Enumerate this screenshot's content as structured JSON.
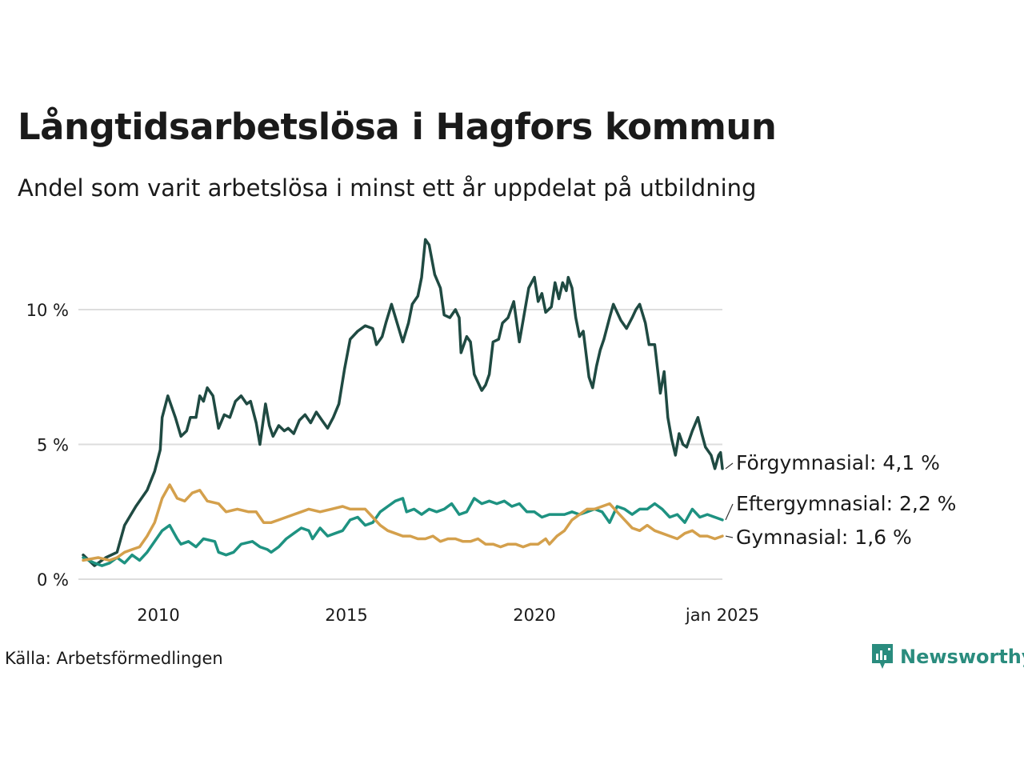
{
  "header": {
    "title": "Långtidsarbetslösa i Hagfors kommun",
    "subtitle": "Andel som varit arbetslösa i minst ett år uppdelat på utbildning"
  },
  "footer": {
    "source": "Källa: Arbetsförmedlingen",
    "brand": "Newsworthy"
  },
  "chart_data": {
    "type": "line",
    "title": "Långtidsarbetslösa i Hagfors kommun",
    "subtitle": "Andel som varit arbetslösa i minst ett år uppdelat på utbildning",
    "xlabel": "",
    "ylabel": "",
    "xlim": [
      2008.0,
      2025.0
    ],
    "ylim": [
      0,
      12.8
    ],
    "y_ticks": [
      {
        "value": 0,
        "label": "0 %"
      },
      {
        "value": 5,
        "label": "5 %"
      },
      {
        "value": 10,
        "label": "10 %"
      }
    ],
    "x_ticks": [
      {
        "value": 2010,
        "label": "2010"
      },
      {
        "value": 2015,
        "label": "2015"
      },
      {
        "value": 2020,
        "label": "2020"
      },
      {
        "value": 2025,
        "label": "jan 2025"
      }
    ],
    "grid": "horizontal",
    "series": [
      {
        "name": "Förgymnasial",
        "end_label": "Förgymnasial: 4,1 %",
        "color": "#1f4a42",
        "points": [
          [
            2008.0,
            0.9
          ],
          [
            2008.3,
            0.5
          ],
          [
            2008.6,
            0.8
          ],
          [
            2008.9,
            1.0
          ],
          [
            2009.1,
            2.0
          ],
          [
            2009.4,
            2.7
          ],
          [
            2009.7,
            3.3
          ],
          [
            2009.9,
            4.0
          ],
          [
            2010.05,
            4.8
          ],
          [
            2010.1,
            6.0
          ],
          [
            2010.25,
            6.8
          ],
          [
            2010.45,
            6.0
          ],
          [
            2010.6,
            5.3
          ],
          [
            2010.75,
            5.5
          ],
          [
            2010.85,
            6.0
          ],
          [
            2011.0,
            6.0
          ],
          [
            2011.1,
            6.8
          ],
          [
            2011.2,
            6.6
          ],
          [
            2011.3,
            7.1
          ],
          [
            2011.45,
            6.8
          ],
          [
            2011.6,
            5.6
          ],
          [
            2011.75,
            6.1
          ],
          [
            2011.9,
            6.0
          ],
          [
            2012.05,
            6.6
          ],
          [
            2012.2,
            6.8
          ],
          [
            2012.35,
            6.5
          ],
          [
            2012.45,
            6.6
          ],
          [
            2012.6,
            5.8
          ],
          [
            2012.7,
            5.0
          ],
          [
            2012.85,
            6.5
          ],
          [
            2012.95,
            5.7
          ],
          [
            2013.05,
            5.3
          ],
          [
            2013.2,
            5.7
          ],
          [
            2013.35,
            5.5
          ],
          [
            2013.45,
            5.6
          ],
          [
            2013.6,
            5.4
          ],
          [
            2013.75,
            5.9
          ],
          [
            2013.9,
            6.1
          ],
          [
            2014.05,
            5.8
          ],
          [
            2014.2,
            6.2
          ],
          [
            2014.35,
            5.9
          ],
          [
            2014.5,
            5.6
          ],
          [
            2014.65,
            6.0
          ],
          [
            2014.8,
            6.5
          ],
          [
            2014.95,
            7.8
          ],
          [
            2015.1,
            8.9
          ],
          [
            2015.3,
            9.2
          ],
          [
            2015.5,
            9.4
          ],
          [
            2015.7,
            9.3
          ],
          [
            2015.8,
            8.7
          ],
          [
            2015.95,
            9.0
          ],
          [
            2016.05,
            9.5
          ],
          [
            2016.2,
            10.2
          ],
          [
            2016.35,
            9.5
          ],
          [
            2016.5,
            8.8
          ],
          [
            2016.65,
            9.5
          ],
          [
            2016.75,
            10.2
          ],
          [
            2016.9,
            10.5
          ],
          [
            2017.0,
            11.2
          ],
          [
            2017.1,
            12.6
          ],
          [
            2017.2,
            12.4
          ],
          [
            2017.35,
            11.3
          ],
          [
            2017.5,
            10.8
          ],
          [
            2017.6,
            9.8
          ],
          [
            2017.75,
            9.7
          ],
          [
            2017.9,
            10.0
          ],
          [
            2018.0,
            9.7
          ],
          [
            2018.05,
            8.4
          ],
          [
            2018.2,
            9.0
          ],
          [
            2018.3,
            8.8
          ],
          [
            2018.4,
            7.6
          ],
          [
            2018.5,
            7.3
          ],
          [
            2018.6,
            7.0
          ],
          [
            2018.7,
            7.2
          ],
          [
            2018.8,
            7.6
          ],
          [
            2018.9,
            8.8
          ],
          [
            2019.05,
            8.9
          ],
          [
            2019.15,
            9.5
          ],
          [
            2019.3,
            9.7
          ],
          [
            2019.45,
            10.3
          ],
          [
            2019.6,
            8.8
          ],
          [
            2019.7,
            9.6
          ],
          [
            2019.85,
            10.8
          ],
          [
            2020.0,
            11.2
          ],
          [
            2020.1,
            10.3
          ],
          [
            2020.2,
            10.6
          ],
          [
            2020.3,
            9.9
          ],
          [
            2020.45,
            10.1
          ],
          [
            2020.55,
            11.0
          ],
          [
            2020.65,
            10.4
          ],
          [
            2020.75,
            11.0
          ],
          [
            2020.85,
            10.7
          ],
          [
            2020.9,
            11.2
          ],
          [
            2021.0,
            10.8
          ],
          [
            2021.1,
            9.7
          ],
          [
            2021.2,
            9.0
          ],
          [
            2021.3,
            9.2
          ],
          [
            2021.45,
            7.5
          ],
          [
            2021.55,
            7.1
          ],
          [
            2021.65,
            7.9
          ],
          [
            2021.75,
            8.5
          ],
          [
            2021.85,
            8.9
          ],
          [
            2022.0,
            9.7
          ],
          [
            2022.1,
            10.2
          ],
          [
            2022.2,
            9.9
          ],
          [
            2022.3,
            9.6
          ],
          [
            2022.45,
            9.3
          ],
          [
            2022.6,
            9.7
          ],
          [
            2022.7,
            10.0
          ],
          [
            2022.8,
            10.2
          ],
          [
            2022.95,
            9.5
          ],
          [
            2023.05,
            8.7
          ],
          [
            2023.2,
            8.7
          ],
          [
            2023.3,
            7.5
          ],
          [
            2023.35,
            6.9
          ],
          [
            2023.45,
            7.7
          ],
          [
            2023.55,
            6.0
          ],
          [
            2023.65,
            5.2
          ],
          [
            2023.75,
            4.6
          ],
          [
            2023.85,
            5.4
          ],
          [
            2023.95,
            5.0
          ],
          [
            2024.05,
            4.9
          ],
          [
            2024.2,
            5.5
          ],
          [
            2024.35,
            6.0
          ],
          [
            2024.45,
            5.4
          ],
          [
            2024.55,
            4.9
          ],
          [
            2024.7,
            4.6
          ],
          [
            2024.8,
            4.1
          ],
          [
            2024.9,
            4.6
          ],
          [
            2024.95,
            4.7
          ],
          [
            2025.0,
            4.1
          ]
        ]
      },
      {
        "name": "Eftergymnasial",
        "end_label": "Eftergymnasial: 2,2 %",
        "color": "#1e9281",
        "points": [
          [
            2008.0,
            0.8
          ],
          [
            2008.3,
            0.6
          ],
          [
            2008.5,
            0.5
          ],
          [
            2008.7,
            0.6
          ],
          [
            2008.9,
            0.8
          ],
          [
            2009.1,
            0.6
          ],
          [
            2009.3,
            0.9
          ],
          [
            2009.5,
            0.7
          ],
          [
            2009.7,
            1.0
          ],
          [
            2009.9,
            1.4
          ],
          [
            2010.1,
            1.8
          ],
          [
            2010.3,
            2.0
          ],
          [
            2010.5,
            1.5
          ],
          [
            2010.6,
            1.3
          ],
          [
            2010.8,
            1.4
          ],
          [
            2011.0,
            1.2
          ],
          [
            2011.2,
            1.5
          ],
          [
            2011.5,
            1.4
          ],
          [
            2011.6,
            1.0
          ],
          [
            2011.8,
            0.9
          ],
          [
            2012.0,
            1.0
          ],
          [
            2012.2,
            1.3
          ],
          [
            2012.5,
            1.4
          ],
          [
            2012.7,
            1.2
          ],
          [
            2012.9,
            1.1
          ],
          [
            2013.0,
            1.0
          ],
          [
            2013.2,
            1.2
          ],
          [
            2013.4,
            1.5
          ],
          [
            2013.6,
            1.7
          ],
          [
            2013.8,
            1.9
          ],
          [
            2014.0,
            1.8
          ],
          [
            2014.1,
            1.5
          ],
          [
            2014.3,
            1.9
          ],
          [
            2014.5,
            1.6
          ],
          [
            2014.7,
            1.7
          ],
          [
            2014.9,
            1.8
          ],
          [
            2015.1,
            2.2
          ],
          [
            2015.3,
            2.3
          ],
          [
            2015.5,
            2.0
          ],
          [
            2015.7,
            2.1
          ],
          [
            2015.9,
            2.5
          ],
          [
            2016.1,
            2.7
          ],
          [
            2016.3,
            2.9
          ],
          [
            2016.5,
            3.0
          ],
          [
            2016.6,
            2.5
          ],
          [
            2016.8,
            2.6
          ],
          [
            2017.0,
            2.4
          ],
          [
            2017.2,
            2.6
          ],
          [
            2017.4,
            2.5
          ],
          [
            2017.6,
            2.6
          ],
          [
            2017.8,
            2.8
          ],
          [
            2018.0,
            2.4
          ],
          [
            2018.2,
            2.5
          ],
          [
            2018.4,
            3.0
          ],
          [
            2018.6,
            2.8
          ],
          [
            2018.8,
            2.9
          ],
          [
            2019.0,
            2.8
          ],
          [
            2019.2,
            2.9
          ],
          [
            2019.4,
            2.7
          ],
          [
            2019.6,
            2.8
          ],
          [
            2019.8,
            2.5
          ],
          [
            2020.0,
            2.5
          ],
          [
            2020.2,
            2.3
          ],
          [
            2020.4,
            2.4
          ],
          [
            2020.6,
            2.4
          ],
          [
            2020.8,
            2.4
          ],
          [
            2021.0,
            2.5
          ],
          [
            2021.2,
            2.4
          ],
          [
            2021.4,
            2.5
          ],
          [
            2021.6,
            2.6
          ],
          [
            2021.8,
            2.5
          ],
          [
            2022.0,
            2.1
          ],
          [
            2022.2,
            2.7
          ],
          [
            2022.4,
            2.6
          ],
          [
            2022.6,
            2.4
          ],
          [
            2022.8,
            2.6
          ],
          [
            2023.0,
            2.6
          ],
          [
            2023.2,
            2.8
          ],
          [
            2023.4,
            2.6
          ],
          [
            2023.6,
            2.3
          ],
          [
            2023.8,
            2.4
          ],
          [
            2024.0,
            2.1
          ],
          [
            2024.2,
            2.6
          ],
          [
            2024.4,
            2.3
          ],
          [
            2024.6,
            2.4
          ],
          [
            2024.8,
            2.3
          ],
          [
            2025.0,
            2.2
          ]
        ]
      },
      {
        "name": "Gymnasial",
        "end_label": "Gymnasial: 1,6 %",
        "color": "#d4a04c",
        "points": [
          [
            2008.0,
            0.7
          ],
          [
            2008.4,
            0.8
          ],
          [
            2008.7,
            0.7
          ],
          [
            2008.9,
            0.8
          ],
          [
            2009.1,
            1.0
          ],
          [
            2009.3,
            1.1
          ],
          [
            2009.5,
            1.2
          ],
          [
            2009.7,
            1.6
          ],
          [
            2009.9,
            2.1
          ],
          [
            2010.1,
            3.0
          ],
          [
            2010.3,
            3.5
          ],
          [
            2010.5,
            3.0
          ],
          [
            2010.7,
            2.9
          ],
          [
            2010.9,
            3.2
          ],
          [
            2011.1,
            3.3
          ],
          [
            2011.3,
            2.9
          ],
          [
            2011.6,
            2.8
          ],
          [
            2011.8,
            2.5
          ],
          [
            2012.1,
            2.6
          ],
          [
            2012.4,
            2.5
          ],
          [
            2012.6,
            2.5
          ],
          [
            2012.8,
            2.1
          ],
          [
            2013.0,
            2.1
          ],
          [
            2013.2,
            2.2
          ],
          [
            2013.4,
            2.3
          ],
          [
            2013.6,
            2.4
          ],
          [
            2013.8,
            2.5
          ],
          [
            2014.0,
            2.6
          ],
          [
            2014.3,
            2.5
          ],
          [
            2014.6,
            2.6
          ],
          [
            2014.9,
            2.7
          ],
          [
            2015.1,
            2.6
          ],
          [
            2015.3,
            2.6
          ],
          [
            2015.5,
            2.6
          ],
          [
            2015.7,
            2.3
          ],
          [
            2015.9,
            2.0
          ],
          [
            2016.1,
            1.8
          ],
          [
            2016.3,
            1.7
          ],
          [
            2016.5,
            1.6
          ],
          [
            2016.7,
            1.6
          ],
          [
            2016.9,
            1.5
          ],
          [
            2017.1,
            1.5
          ],
          [
            2017.3,
            1.6
          ],
          [
            2017.5,
            1.4
          ],
          [
            2017.7,
            1.5
          ],
          [
            2017.9,
            1.5
          ],
          [
            2018.1,
            1.4
          ],
          [
            2018.3,
            1.4
          ],
          [
            2018.5,
            1.5
          ],
          [
            2018.7,
            1.3
          ],
          [
            2018.9,
            1.3
          ],
          [
            2019.1,
            1.2
          ],
          [
            2019.3,
            1.3
          ],
          [
            2019.5,
            1.3
          ],
          [
            2019.7,
            1.2
          ],
          [
            2019.9,
            1.3
          ],
          [
            2020.1,
            1.3
          ],
          [
            2020.3,
            1.5
          ],
          [
            2020.4,
            1.3
          ],
          [
            2020.6,
            1.6
          ],
          [
            2020.8,
            1.8
          ],
          [
            2021.0,
            2.2
          ],
          [
            2021.2,
            2.4
          ],
          [
            2021.4,
            2.6
          ],
          [
            2021.6,
            2.6
          ],
          [
            2021.8,
            2.7
          ],
          [
            2022.0,
            2.8
          ],
          [
            2022.2,
            2.5
          ],
          [
            2022.4,
            2.2
          ],
          [
            2022.6,
            1.9
          ],
          [
            2022.8,
            1.8
          ],
          [
            2023.0,
            2.0
          ],
          [
            2023.2,
            1.8
          ],
          [
            2023.4,
            1.7
          ],
          [
            2023.6,
            1.6
          ],
          [
            2023.8,
            1.5
          ],
          [
            2024.0,
            1.7
          ],
          [
            2024.2,
            1.8
          ],
          [
            2024.4,
            1.6
          ],
          [
            2024.6,
            1.6
          ],
          [
            2024.8,
            1.5
          ],
          [
            2025.0,
            1.6
          ]
        ]
      }
    ]
  }
}
